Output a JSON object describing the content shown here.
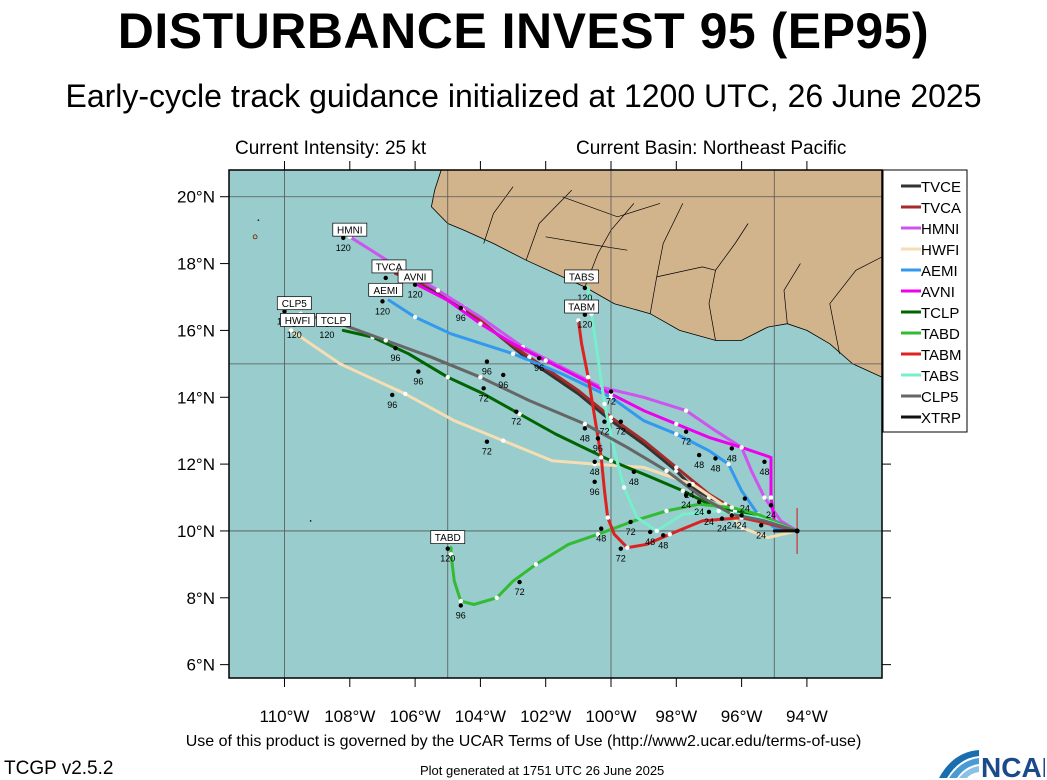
{
  "header": {
    "title": "DISTURBANCE INVEST 95 (EP95)",
    "subtitle": "Early-cycle track guidance initialized at 1200 UTC, 26 June 2025",
    "intensity": "Current Intensity: 25 kt",
    "basin": "Current Basin: Northeast Pacific"
  },
  "footer": {
    "terms": "Use of this product is governed by the UCAR Terms of Use (http://www2.ucar.edu/terms-of-use)",
    "version": "TCGP v2.5.2",
    "generated": "Plot generated at 1751 UTC   26 June 2025",
    "logo": "NCAR"
  },
  "map": {
    "lon_ticks": [
      "110°W",
      "108°W",
      "106°W",
      "104°W",
      "102°W",
      "100°W",
      "98°W",
      "96°W",
      "94°W"
    ],
    "lat_ticks": [
      "20°N",
      "18°N",
      "16°N",
      "14°N",
      "12°N",
      "10°N",
      "8°N",
      "6°N"
    ],
    "lon_range": [
      -111.7,
      -91.7
    ],
    "lat_range": [
      5.6,
      20.8
    ],
    "colors": {
      "ocean": "#99cccc",
      "land": "#d2b48c"
    },
    "storm_origin": {
      "lon": -94.3,
      "lat": 10.0
    }
  },
  "chart_data": {
    "type": "track",
    "models": [
      {
        "name": "TVCE",
        "color": "#333333",
        "points": [
          [
            -94.3,
            10.0
          ],
          [
            -95.0,
            10.2
          ],
          [
            -95.7,
            10.4
          ],
          [
            -96.0,
            10.5
          ],
          [
            -96.2,
            10.6
          ],
          [
            -96.5,
            10.8
          ],
          [
            -97.0,
            11.0
          ],
          [
            -97.5,
            11.3
          ],
          [
            -98.0,
            11.8
          ],
          [
            -99.0,
            12.6
          ],
          [
            -100.0,
            13.3
          ],
          [
            -101.0,
            14.1
          ],
          [
            -102.5,
            15.1
          ],
          [
            -103.5,
            15.9
          ],
          [
            -104.5,
            16.6
          ],
          [
            -105.5,
            17.2
          ],
          [
            -106.0,
            17.4
          ]
        ]
      },
      {
        "name": "TVCA",
        "color": "#a52a2a",
        "points": [
          [
            -94.3,
            10.0
          ],
          [
            -95.0,
            10.2
          ],
          [
            -95.7,
            10.4
          ],
          [
            -96.0,
            10.5
          ],
          [
            -96.5,
            10.8
          ],
          [
            -97.0,
            11.1
          ],
          [
            -98.0,
            11.9
          ],
          [
            -99.0,
            12.7
          ],
          [
            -100.0,
            13.4
          ],
          [
            -101.0,
            14.2
          ],
          [
            -102.5,
            15.2
          ],
          [
            -103.5,
            15.9
          ],
          [
            -104.5,
            16.7
          ],
          [
            -105.5,
            17.3
          ],
          [
            -106.3,
            17.6
          ],
          [
            -106.6,
            17.7
          ]
        ]
      },
      {
        "name": "HMNI",
        "color": "#cc55ee",
        "points": [
          [
            -94.3,
            10.0
          ],
          [
            -94.8,
            10.3
          ],
          [
            -95.3,
            11.0
          ],
          [
            -95.7,
            11.8
          ],
          [
            -96.0,
            12.5
          ],
          [
            -96.8,
            13.0
          ],
          [
            -97.7,
            13.6
          ],
          [
            -99.0,
            14.0
          ],
          [
            -100.3,
            14.3
          ],
          [
            -101.5,
            14.9
          ],
          [
            -102.7,
            15.5
          ],
          [
            -104.0,
            16.4
          ],
          [
            -105.3,
            17.2
          ],
          [
            -106.7,
            18.0
          ],
          [
            -108.0,
            18.8
          ]
        ]
      },
      {
        "name": "HWFI",
        "color": "#f5deb3",
        "points": [
          [
            -94.3,
            10.0
          ],
          [
            -95.2,
            9.8
          ],
          [
            -96.0,
            10.1
          ],
          [
            -96.6,
            10.8
          ],
          [
            -97.5,
            11.4
          ],
          [
            -99.0,
            11.9
          ],
          [
            -100.5,
            12.0
          ],
          [
            -101.8,
            12.1
          ],
          [
            -103.3,
            12.7
          ],
          [
            -104.8,
            13.3
          ],
          [
            -106.3,
            14.1
          ],
          [
            -108.3,
            15.0
          ],
          [
            -109.8,
            16.0
          ]
        ]
      },
      {
        "name": "AEMI",
        "color": "#3399ee",
        "points": [
          [
            -94.3,
            10.0
          ],
          [
            -95.0,
            10.1
          ],
          [
            -95.5,
            10.5
          ],
          [
            -96.0,
            11.2
          ],
          [
            -96.4,
            12.0
          ],
          [
            -97.0,
            12.4
          ],
          [
            -98.0,
            12.9
          ],
          [
            -99.0,
            13.3
          ],
          [
            -100.0,
            14.0
          ],
          [
            -101.5,
            14.7
          ],
          [
            -103.0,
            15.3
          ],
          [
            -104.9,
            15.9
          ],
          [
            -106.0,
            16.4
          ],
          [
            -106.8,
            16.9
          ]
        ]
      },
      {
        "name": "AVNI",
        "color": "#ee00ee",
        "points": [
          [
            -94.3,
            10.0
          ],
          [
            -95.0,
            10.3
          ],
          [
            -95.1,
            11.0
          ],
          [
            -95.1,
            12.2
          ],
          [
            -96.0,
            12.5
          ],
          [
            -97.0,
            12.8
          ],
          [
            -98.0,
            13.2
          ],
          [
            -99.0,
            13.6
          ],
          [
            -100.0,
            14.1
          ],
          [
            -101.0,
            14.6
          ],
          [
            -102.0,
            15.1
          ],
          [
            -103.0,
            15.6
          ],
          [
            -104.0,
            16.2
          ],
          [
            -105.0,
            16.9
          ],
          [
            -106.0,
            17.4
          ]
        ]
      },
      {
        "name": "TCLP",
        "color": "#006400",
        "points": [
          [
            -94.3,
            10.0
          ],
          [
            -95.5,
            10.4
          ],
          [
            -96.2,
            10.6
          ],
          [
            -97.0,
            10.8
          ],
          [
            -97.8,
            11.2
          ],
          [
            -99.0,
            11.7
          ],
          [
            -100.0,
            12.1
          ],
          [
            -101.7,
            12.9
          ],
          [
            -102.8,
            13.5
          ],
          [
            -103.9,
            14.1
          ],
          [
            -105.0,
            14.6
          ],
          [
            -106.2,
            15.3
          ],
          [
            -107.3,
            15.8
          ],
          [
            -108.2,
            16.0
          ]
        ]
      },
      {
        "name": "TABD",
        "color": "#33bb33",
        "points": [
          [
            -94.3,
            10.0
          ],
          [
            -95.5,
            10.5
          ],
          [
            -96.3,
            10.7
          ],
          [
            -97.3,
            10.8
          ],
          [
            -98.3,
            10.6
          ],
          [
            -99.3,
            10.3
          ],
          [
            -100.4,
            9.9
          ],
          [
            -101.3,
            9.6
          ],
          [
            -102.3,
            9.0
          ],
          [
            -103.0,
            8.5
          ],
          [
            -103.5,
            8.0
          ],
          [
            -104.2,
            7.8
          ],
          [
            -104.6,
            7.9
          ],
          [
            -104.8,
            8.5
          ],
          [
            -104.9,
            9.3
          ],
          [
            -104.9,
            9.5
          ]
        ]
      },
      {
        "name": "TABM",
        "color": "#dd2222",
        "points": [
          [
            -94.3,
            10.0
          ],
          [
            -95.1,
            10.2
          ],
          [
            -96.0,
            10.4
          ],
          [
            -97.2,
            10.3
          ],
          [
            -98.2,
            9.9
          ],
          [
            -98.9,
            9.6
          ],
          [
            -99.5,
            9.5
          ],
          [
            -99.9,
            9.9
          ],
          [
            -100.1,
            10.4
          ],
          [
            -100.2,
            11.2
          ],
          [
            -100.3,
            12.2
          ],
          [
            -100.5,
            13.4
          ],
          [
            -100.7,
            14.6
          ],
          [
            -100.9,
            15.6
          ],
          [
            -101.0,
            16.3
          ]
        ]
      },
      {
        "name": "TABS",
        "color": "#77eecc",
        "points": [
          [
            -94.3,
            10.0
          ],
          [
            -95.5,
            10.4
          ],
          [
            -96.7,
            10.6
          ],
          [
            -97.8,
            10.5
          ],
          [
            -98.6,
            10.0
          ],
          [
            -99.2,
            10.4
          ],
          [
            -99.6,
            11.3
          ],
          [
            -99.9,
            12.4
          ],
          [
            -100.2,
            13.8
          ],
          [
            -100.4,
            15.2
          ],
          [
            -100.6,
            16.5
          ],
          [
            -100.7,
            17.3
          ]
        ]
      },
      {
        "name": "CLP5",
        "color": "#666666",
        "points": [
          [
            -94.3,
            10.0
          ],
          [
            -95.3,
            10.3
          ],
          [
            -96.3,
            10.5
          ],
          [
            -97.2,
            11.0
          ],
          [
            -98.3,
            11.8
          ],
          [
            -99.5,
            12.5
          ],
          [
            -100.8,
            13.2
          ],
          [
            -102.5,
            13.9
          ],
          [
            -104.0,
            14.6
          ],
          [
            -105.5,
            15.2
          ],
          [
            -106.9,
            15.7
          ],
          [
            -108.3,
            16.2
          ],
          [
            -109.5,
            16.5
          ]
        ]
      },
      {
        "name": "XTRP",
        "color": "#111111",
        "points": [
          [
            -94.3,
            10.0
          ],
          [
            -95.0,
            10.0
          ]
        ]
      }
    ],
    "labels": [
      {
        "model": "HMNI",
        "text": "120",
        "lon": -108.2,
        "lat": 18.5
      },
      {
        "model": "TVCA",
        "text": "120",
        "lon": -106.9,
        "lat": 17.3
      },
      {
        "model": "AVNI",
        "text": "120",
        "lon": -106.0,
        "lat": 17.1
      },
      {
        "model": "AEMI",
        "text": "120",
        "lon": -107.0,
        "lat": 16.6
      },
      {
        "model": "CLP5",
        "text": "120",
        "lon": -110.0,
        "lat": 16.3
      },
      {
        "model": "HWFI",
        "text": "120",
        "lon": -109.7,
        "lat": 15.9
      },
      {
        "model": "TCLP",
        "text": "120",
        "lon": -108.7,
        "lat": 15.9
      },
      {
        "model": "TABS",
        "text": "120",
        "lon": -100.8,
        "lat": 17.0
      },
      {
        "model": "TABM",
        "text": "120",
        "lon": -100.8,
        "lat": 16.2
      },
      {
        "model": "TABD",
        "text": "120",
        "lon": -105.0,
        "lat": 9.2
      },
      {
        "model": "TVCE",
        "text": "96",
        "lon": -104.6,
        "lat": 16.4
      },
      {
        "model": "CLP5",
        "text": "96",
        "lon": -106.6,
        "lat": 15.2
      },
      {
        "model": "TCLP",
        "text": "96",
        "lon": -105.9,
        "lat": 14.5
      },
      {
        "model": "HWFI",
        "text": "96",
        "lon": -106.7,
        "lat": 13.8
      },
      {
        "model": "TVCE",
        "text": "96",
        "lon": -103.8,
        "lat": 14.8
      },
      {
        "model": "AEMI",
        "text": "96",
        "lon": -103.3,
        "lat": 14.4
      },
      {
        "model": "AVNI",
        "text": "96",
        "lon": -102.2,
        "lat": 14.9
      },
      {
        "model": "TABM",
        "text": "96",
        "lon": -100.4,
        "lat": 12.5
      },
      {
        "model": "TABS",
        "text": "96",
        "lon": -100.5,
        "lat": 11.2
      },
      {
        "model": "TABD",
        "text": "96",
        "lon": -104.6,
        "lat": 7.5
      },
      {
        "model": "CLP5",
        "text": "72",
        "lon": -103.9,
        "lat": 14.0
      },
      {
        "model": "TCLP",
        "text": "72",
        "lon": -102.9,
        "lat": 13.3
      },
      {
        "model": "HWFI",
        "text": "72",
        "lon": -103.8,
        "lat": 12.4
      },
      {
        "model": "HMNI",
        "text": "72",
        "lon": -100.0,
        "lat": 13.9
      },
      {
        "model": "AEMI",
        "text": "72",
        "lon": -100.2,
        "lat": 13.0
      },
      {
        "model": "TVCE",
        "text": "72",
        "lon": -99.7,
        "lat": 13.0
      },
      {
        "model": "TVCA",
        "text": "72",
        "lon": -97.7,
        "lat": 12.7
      },
      {
        "model": "TABM",
        "text": "72",
        "lon": -99.7,
        "lat": 9.2
      },
      {
        "model": "TABS",
        "text": "72",
        "lon": -99.4,
        "lat": 10.0
      },
      {
        "model": "TABD",
        "text": "72",
        "lon": -102.8,
        "lat": 8.2
      },
      {
        "model": "TVCE",
        "text": "48",
        "lon": -100.8,
        "lat": 12.8
      },
      {
        "model": "CLP5",
        "text": "48",
        "lon": -100.5,
        "lat": 11.8
      },
      {
        "model": "TCLP",
        "text": "48",
        "lon": -99.3,
        "lat": 11.5
      },
      {
        "model": "AEMI",
        "text": "48",
        "lon": -97.3,
        "lat": 12.0
      },
      {
        "model": "TVCA",
        "text": "48",
        "lon": -96.8,
        "lat": 11.9
      },
      {
        "model": "HMNI",
        "text": "48",
        "lon": -96.3,
        "lat": 12.2
      },
      {
        "model": "AVNI",
        "text": "48",
        "lon": -95.3,
        "lat": 11.8
      },
      {
        "model": "TABM",
        "text": "48",
        "lon": -98.4,
        "lat": 9.6
      },
      {
        "model": "TABS",
        "text": "48",
        "lon": -98.8,
        "lat": 9.7
      },
      {
        "model": "TABD",
        "text": "48",
        "lon": -100.3,
        "lat": 9.8
      },
      {
        "model": "TVCE",
        "text": "24",
        "lon": -97.6,
        "lat": 11.1
      },
      {
        "model": "TVCA",
        "text": "24",
        "lon": -97.7,
        "lat": 10.8
      },
      {
        "model": "TCLP",
        "text": "24",
        "lon": -97.3,
        "lat": 10.6
      },
      {
        "model": "AEMI",
        "text": "24",
        "lon": -97.0,
        "lat": 10.3
      },
      {
        "model": "AVNI",
        "text": "24",
        "lon": -95.9,
        "lat": 10.7
      },
      {
        "model": "HMNI",
        "text": "24",
        "lon": -95.1,
        "lat": 10.5
      },
      {
        "model": "HWFI",
        "text": "24",
        "lon": -96.0,
        "lat": 10.2
      },
      {
        "model": "TABM",
        "text": "24",
        "lon": -96.3,
        "lat": 10.2
      },
      {
        "model": "TABS",
        "text": "24",
        "lon": -95.4,
        "lat": 9.9
      },
      {
        "model": "TABD",
        "text": "24",
        "lon": -96.6,
        "lat": 10.1
      }
    ],
    "tags": [
      {
        "text": "HMNI",
        "lon": -108.0,
        "lat": 19.0
      },
      {
        "text": "TVCA",
        "lon": -106.8,
        "lat": 17.9
      },
      {
        "text": "AVNI",
        "lon": -106.0,
        "lat": 17.6
      },
      {
        "text": "AEMI",
        "lon": -106.9,
        "lat": 17.2
      },
      {
        "text": "CLP5",
        "lon": -109.7,
        "lat": 16.8
      },
      {
        "text": "HWFI",
        "lon": -109.6,
        "lat": 16.3
      },
      {
        "text": "TCLP",
        "lon": -108.5,
        "lat": 16.3
      },
      {
        "text": "TABS",
        "lon": -100.9,
        "lat": 17.6
      },
      {
        "text": "TABM",
        "lon": -100.9,
        "lat": 16.7
      },
      {
        "text": "TABD",
        "lon": -105.0,
        "lat": 9.8
      }
    ]
  }
}
